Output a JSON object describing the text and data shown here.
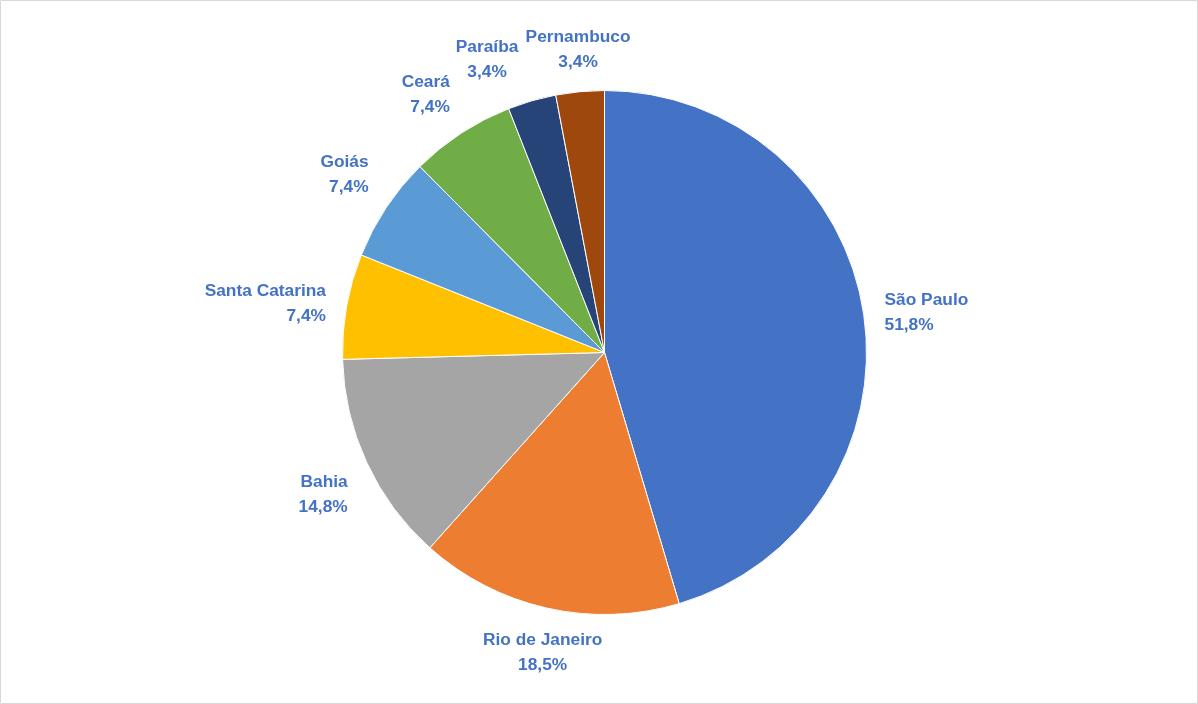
{
  "chart_data": {
    "type": "pie",
    "categories": [
      "São Paulo",
      "Rio de Janeiro",
      "Bahia",
      "Santa Catarina",
      "Goiás",
      "Ceará",
      "Paraíba",
      "Pernambuco"
    ],
    "values": [
      51.8,
      18.5,
      14.8,
      7.4,
      7.4,
      7.4,
      3.4,
      3.4
    ],
    "value_labels": [
      "51,8%",
      "18,5%",
      "14,8%",
      "7,4%",
      "7,4%",
      "7,4%",
      "3,4%",
      "3,4%"
    ],
    "colors": [
      "#4472c4",
      "#ed7d31",
      "#a5a5a5",
      "#ffc000",
      "#5b9bd5",
      "#70ad47",
      "#264478",
      "#9e480e"
    ]
  }
}
